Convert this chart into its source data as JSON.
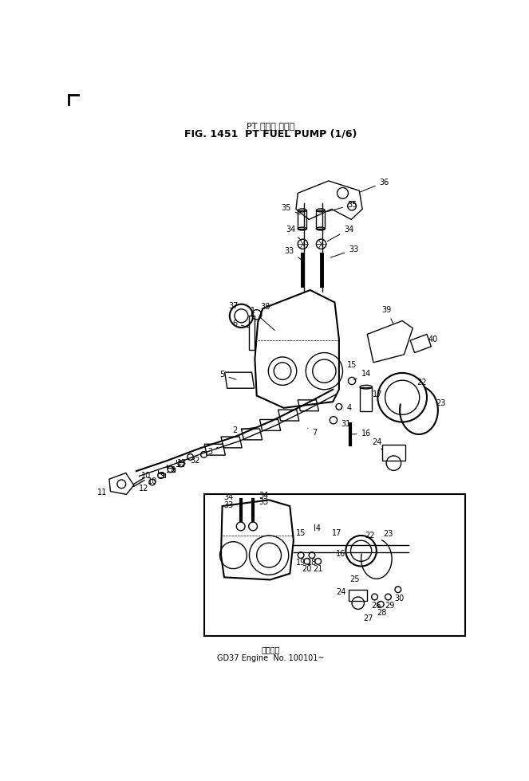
{
  "title_japanese": "PT フェル ポンプ",
  "title_english": "FIG. 1451  PT FUEL PUMP (1/6)",
  "footer_japanese": "部品番号",
  "footer_english": "GD37 Engine  No. 100101~",
  "bg_color": "#ffffff",
  "fg_color": "#000000",
  "fig_width": 6.63,
  "fig_height": 9.8,
  "dpi": 100
}
